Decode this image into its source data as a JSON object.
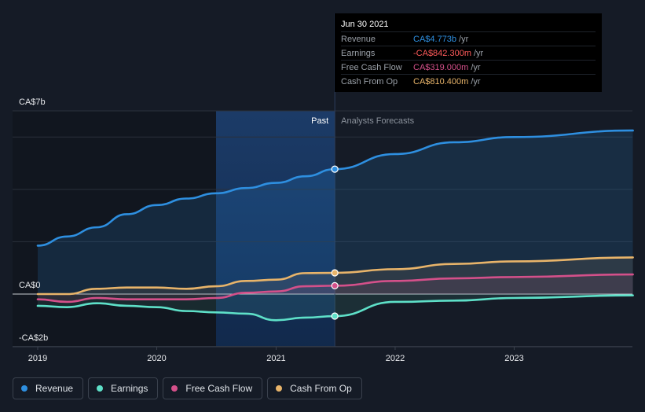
{
  "chart_data": {
    "type": "line",
    "y_tick_labels": [
      "CA$7b",
      "CA$0",
      "-CA$2b"
    ],
    "x_tick_labels": [
      "2019",
      "2020",
      "2021",
      "2022",
      "2023"
    ],
    "ylim": [
      -2,
      7
    ],
    "period_labels": {
      "past": "Past",
      "forecast": "Analysts Forecasts"
    },
    "highlight_date": "2021-06-30",
    "series": [
      {
        "name": "Revenue",
        "color": "#2e8fe0",
        "points": [
          [
            "2019-01-01",
            1.85
          ],
          [
            "2019-04-01",
            2.2
          ],
          [
            "2019-07-01",
            2.55
          ],
          [
            "2019-10-01",
            3.05
          ],
          [
            "2020-01-01",
            3.4
          ],
          [
            "2020-04-01",
            3.65
          ],
          [
            "2020-07-01",
            3.85
          ],
          [
            "2020-10-01",
            4.05
          ],
          [
            "2021-01-01",
            4.25
          ],
          [
            "2021-04-01",
            4.5
          ],
          [
            "2021-06-30",
            4.773
          ],
          [
            "2022-01-01",
            5.35
          ],
          [
            "2022-07-01",
            5.8
          ],
          [
            "2023-01-01",
            6.0
          ],
          [
            "2023-12-31",
            6.25
          ]
        ]
      },
      {
        "name": "Earnings",
        "color": "#5ee0c8",
        "points": [
          [
            "2019-01-01",
            -0.45
          ],
          [
            "2019-04-01",
            -0.5
          ],
          [
            "2019-07-01",
            -0.35
          ],
          [
            "2019-10-01",
            -0.45
          ],
          [
            "2020-01-01",
            -0.5
          ],
          [
            "2020-04-01",
            -0.65
          ],
          [
            "2020-07-01",
            -0.7
          ],
          [
            "2020-10-01",
            -0.75
          ],
          [
            "2021-01-01",
            -1.0
          ],
          [
            "2021-04-01",
            -0.9
          ],
          [
            "2021-06-30",
            -0.8423
          ],
          [
            "2022-01-01",
            -0.3
          ],
          [
            "2022-07-01",
            -0.25
          ],
          [
            "2023-01-01",
            -0.15
          ],
          [
            "2023-12-31",
            -0.05
          ]
        ]
      },
      {
        "name": "Free Cash Flow",
        "color": "#d4508a",
        "points": [
          [
            "2019-01-01",
            -0.2
          ],
          [
            "2019-04-01",
            -0.3
          ],
          [
            "2019-07-01",
            -0.15
          ],
          [
            "2019-10-01",
            -0.2
          ],
          [
            "2020-01-01",
            -0.2
          ],
          [
            "2020-04-01",
            -0.2
          ],
          [
            "2020-07-01",
            -0.15
          ],
          [
            "2020-10-01",
            0.05
          ],
          [
            "2021-01-01",
            0.1
          ],
          [
            "2021-04-01",
            0.3
          ],
          [
            "2021-06-30",
            0.319
          ],
          [
            "2022-01-01",
            0.5
          ],
          [
            "2022-07-01",
            0.6
          ],
          [
            "2023-01-01",
            0.65
          ],
          [
            "2023-12-31",
            0.75
          ]
        ]
      },
      {
        "name": "Cash From Op",
        "color": "#e8b46a",
        "points": [
          [
            "2019-01-01",
            0.0
          ],
          [
            "2019-04-01",
            0.0
          ],
          [
            "2019-07-01",
            0.2
          ],
          [
            "2019-10-01",
            0.25
          ],
          [
            "2020-01-01",
            0.25
          ],
          [
            "2020-04-01",
            0.2
          ],
          [
            "2020-07-01",
            0.3
          ],
          [
            "2020-10-01",
            0.5
          ],
          [
            "2021-01-01",
            0.55
          ],
          [
            "2021-04-01",
            0.8
          ],
          [
            "2021-06-30",
            0.8104
          ],
          [
            "2022-01-01",
            0.95
          ],
          [
            "2022-07-01",
            1.15
          ],
          [
            "2023-01-01",
            1.25
          ],
          [
            "2023-12-31",
            1.4
          ]
        ]
      }
    ]
  },
  "tooltip": {
    "date": "Jun 30 2021",
    "rows": [
      {
        "label": "Revenue",
        "value": "CA$4.773b",
        "unit": "/yr",
        "color": "#2e8fe0"
      },
      {
        "label": "Earnings",
        "value": "-CA$842.300m",
        "unit": "/yr",
        "color": "#ff5a5a"
      },
      {
        "label": "Free Cash Flow",
        "value": "CA$319.000m",
        "unit": "/yr",
        "color": "#d4508a"
      },
      {
        "label": "Cash From Op",
        "value": "CA$810.400m",
        "unit": "/yr",
        "color": "#e8b46a"
      }
    ]
  },
  "legend": [
    {
      "label": "Revenue",
      "color": "#2e8fe0"
    },
    {
      "label": "Earnings",
      "color": "#5ee0c8"
    },
    {
      "label": "Free Cash Flow",
      "color": "#d4508a"
    },
    {
      "label": "Cash From Op",
      "color": "#e8b46a"
    }
  ]
}
